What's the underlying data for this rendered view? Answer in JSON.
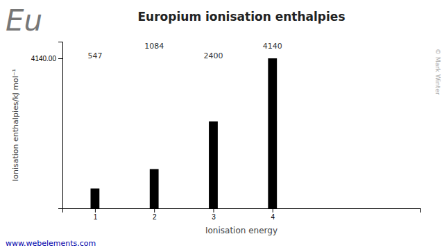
{
  "chart_data": {
    "type": "bar",
    "title": "Europium ionisation enthalpies",
    "x": [
      1,
      2,
      3,
      4
    ],
    "values": [
      547,
      1084,
      2400,
      4140
    ],
    "color": "#000000",
    "xlabel": "Ionisation energy",
    "ylabel": "Ionisation enthalpies/kJ mol⁻¹",
    "xlim": [
      0.45,
      6.5
    ],
    "xticks": [
      1,
      2,
      3,
      4
    ],
    "ylim": [
      0,
      4600
    ],
    "yticks": [
      {
        "value": 4140,
        "label": "4140.00"
      }
    ],
    "grid": false,
    "data_labels": true,
    "annotations": [
      {
        "text": "Eu"
      },
      {
        "text": "www.webelements.com"
      },
      {
        "text": "© Mark Winter"
      }
    ]
  }
}
